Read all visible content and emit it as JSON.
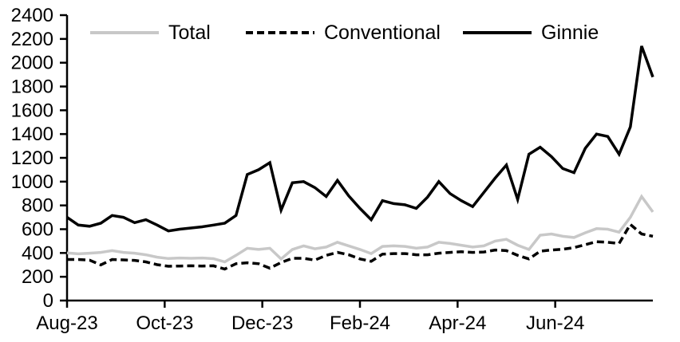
{
  "chart_data": {
    "type": "line",
    "title": "",
    "x_axis": {
      "tick_labels": [
        "Aug-23",
        "Oct-23",
        "Dec-23",
        "Feb-24",
        "Apr-24",
        "Jun-24"
      ],
      "cadence": "weekly"
    },
    "y_axis": {
      "min": 0,
      "max": 2400,
      "step": 200,
      "tick_labels": [
        "0",
        "200",
        "400",
        "600",
        "800",
        "1000",
        "1200",
        "1400",
        "1600",
        "1800",
        "2000",
        "2200",
        "2400"
      ]
    },
    "legend": [
      {
        "name": "Total",
        "style": "solid",
        "color": "#c8c8c8"
      },
      {
        "name": "Conventional",
        "style": "dashed",
        "color": "#000000"
      },
      {
        "name": "Ginnie",
        "style": "solid",
        "color": "#000000"
      }
    ],
    "grid": false,
    "legend_position": "top-inside",
    "series": [
      {
        "name": "Total",
        "values": [
          400,
          393,
          398,
          405,
          420,
          405,
          398,
          385,
          365,
          353,
          358,
          355,
          358,
          352,
          325,
          380,
          440,
          430,
          440,
          350,
          430,
          460,
          435,
          450,
          490,
          460,
          430,
          395,
          455,
          460,
          455,
          440,
          450,
          490,
          480,
          465,
          450,
          460,
          500,
          515,
          465,
          430,
          550,
          560,
          540,
          530,
          570,
          605,
          600,
          575,
          700,
          875,
          745
        ]
      },
      {
        "name": "Conventional",
        "values": [
          345,
          345,
          340,
          300,
          345,
          342,
          338,
          325,
          302,
          288,
          290,
          292,
          290,
          292,
          265,
          310,
          318,
          310,
          272,
          320,
          355,
          355,
          340,
          380,
          405,
          385,
          350,
          330,
          390,
          395,
          395,
          385,
          385,
          398,
          405,
          410,
          405,
          408,
          425,
          420,
          380,
          350,
          415,
          425,
          432,
          445,
          470,
          495,
          490,
          480,
          640,
          560,
          540
        ]
      },
      {
        "name": "Ginnie",
        "values": [
          700,
          635,
          625,
          650,
          715,
          700,
          655,
          680,
          635,
          585,
          600,
          610,
          620,
          635,
          650,
          715,
          1060,
          1100,
          1160,
          760,
          990,
          1000,
          950,
          875,
          1010,
          880,
          775,
          680,
          840,
          815,
          805,
          775,
          870,
          1000,
          900,
          840,
          790,
          910,
          1030,
          1140,
          850,
          1230,
          1290,
          1210,
          1110,
          1075,
          1280,
          1400,
          1380,
          1230,
          1460,
          2140,
          1880
        ]
      }
    ]
  },
  "colors": {
    "total_line": "#c8c8c8",
    "conventional_line": "#000000",
    "ginnie_line": "#000000",
    "axis": "#000000",
    "text": "#000000",
    "background": "#ffffff"
  }
}
